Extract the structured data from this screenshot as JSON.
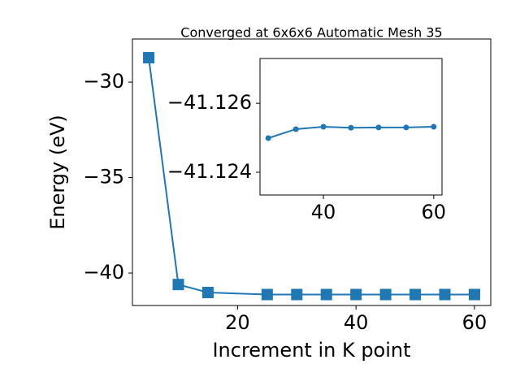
{
  "chart_data": [
    {
      "type": "line",
      "title": "Converged at 6x6x6 Automatic Mesh 35",
      "x_label": "Increment in K point",
      "y_label": "Energy (eV)",
      "x": [
        5,
        10,
        15,
        25,
        30,
        35,
        40,
        45,
        50,
        55,
        60
      ],
      "series": [
        {
          "color": "#1f77b4",
          "marker": "square",
          "values": [
            -28.72,
            -40.6,
            -41.02,
            -41.125,
            -41.12499,
            -41.12525,
            -41.12532,
            -41.12529,
            -41.1253,
            -41.1253,
            -41.12532
          ]
        }
      ],
      "xlim": [
        2.25,
        62.75
      ],
      "ylim": [
        -41.7,
        -27.74
      ],
      "xticks": [
        20,
        40,
        60
      ],
      "yticks": [
        {
          "value": -40,
          "label": "−40"
        },
        {
          "value": -35,
          "label": "−35"
        },
        {
          "value": -30,
          "label": "−30"
        }
      ]
    },
    {
      "type": "line",
      "x": [
        30,
        35,
        40,
        45,
        50,
        55,
        60
      ],
      "series": [
        {
          "color": "#1f77b4",
          "marker": "circle",
          "values": [
            -41.12499,
            -41.12525,
            -41.12532,
            -41.12529,
            -41.1253,
            -41.1253,
            -41.12532
          ]
        }
      ],
      "xlim": [
        28.5,
        61.5
      ],
      "ylim": [
        -41.12334,
        -41.1273
      ],
      "xticks": [
        40,
        60
      ],
      "yticks": [
        {
          "value": -41.126,
          "label": "−41.126"
        },
        {
          "value": -41.124,
          "label": "−41.124"
        }
      ]
    }
  ]
}
